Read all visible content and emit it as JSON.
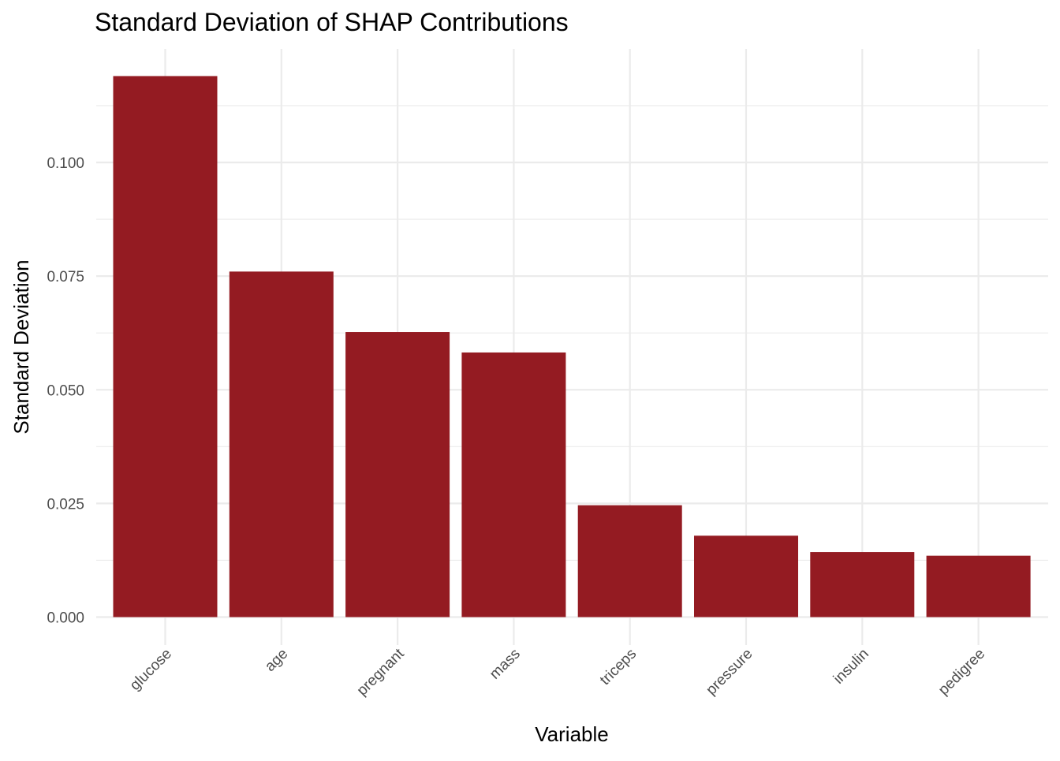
{
  "chart_data": {
    "type": "bar",
    "title": "Standard Deviation of SHAP Contributions",
    "xlabel": "Variable",
    "ylabel": "Standard Deviation",
    "categories": [
      "glucose",
      "age",
      "pregnant",
      "mass",
      "triceps",
      "pressure",
      "insulin",
      "pedigree"
    ],
    "values": [
      0.119,
      0.076,
      0.0627,
      0.0582,
      0.0246,
      0.0179,
      0.0143,
      0.0135
    ],
    "ylim": [
      0,
      0.125
    ],
    "yticks": [
      0.0,
      0.025,
      0.05,
      0.075,
      0.1
    ],
    "ytick_labels": [
      "0.000",
      "0.025",
      "0.050",
      "0.075",
      "0.100"
    ],
    "grid": true,
    "legend": "none",
    "bar_color": "#941b22"
  }
}
